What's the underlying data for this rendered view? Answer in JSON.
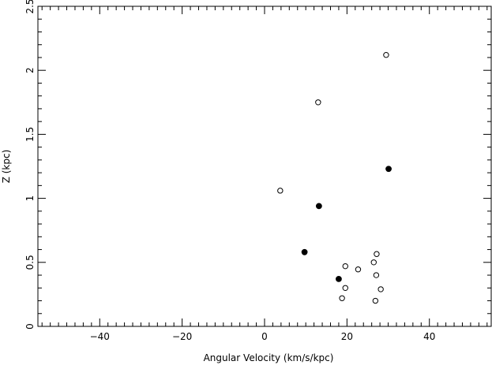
{
  "chart_data": {
    "type": "scatter",
    "title": "",
    "xlabel": "Angular Velocity (km/s/kpc)",
    "ylabel": "Z (kpc)",
    "xlim": [
      -55,
      55
    ],
    "ylim": [
      0,
      2.5
    ],
    "grid": false,
    "x_major_ticks": [
      -40,
      -20,
      0,
      20,
      40
    ],
    "x_tick_labels": [
      "−40",
      "−20",
      "0",
      "20",
      "40"
    ],
    "x_minor_step": 2,
    "y_major_ticks": [
      0,
      0.5,
      1,
      1.5,
      2,
      2.5
    ],
    "y_tick_labels": [
      "0",
      "0.5",
      "1",
      "1.5",
      "2",
      "2.5"
    ],
    "y_minor_step": 0.1,
    "series": [
      {
        "marker": "open-circle",
        "points": [
          {
            "x": 29.5,
            "y": 2.12
          },
          {
            "x": 13.0,
            "y": 1.75
          },
          {
            "x": 3.8,
            "y": 1.06
          },
          {
            "x": 27.2,
            "y": 0.565
          },
          {
            "x": 26.5,
            "y": 0.5
          },
          {
            "x": 19.6,
            "y": 0.47
          },
          {
            "x": 22.7,
            "y": 0.445
          },
          {
            "x": 27.1,
            "y": 0.4
          },
          {
            "x": 19.6,
            "y": 0.3
          },
          {
            "x": 28.2,
            "y": 0.29
          },
          {
            "x": 18.8,
            "y": 0.22
          },
          {
            "x": 26.9,
            "y": 0.2
          }
        ]
      },
      {
        "marker": "filled-circle",
        "points": [
          {
            "x": 30.1,
            "y": 1.23
          },
          {
            "x": 13.2,
            "y": 0.94
          },
          {
            "x": 9.7,
            "y": 0.58
          },
          {
            "x": 18.0,
            "y": 0.37
          }
        ]
      }
    ]
  }
}
